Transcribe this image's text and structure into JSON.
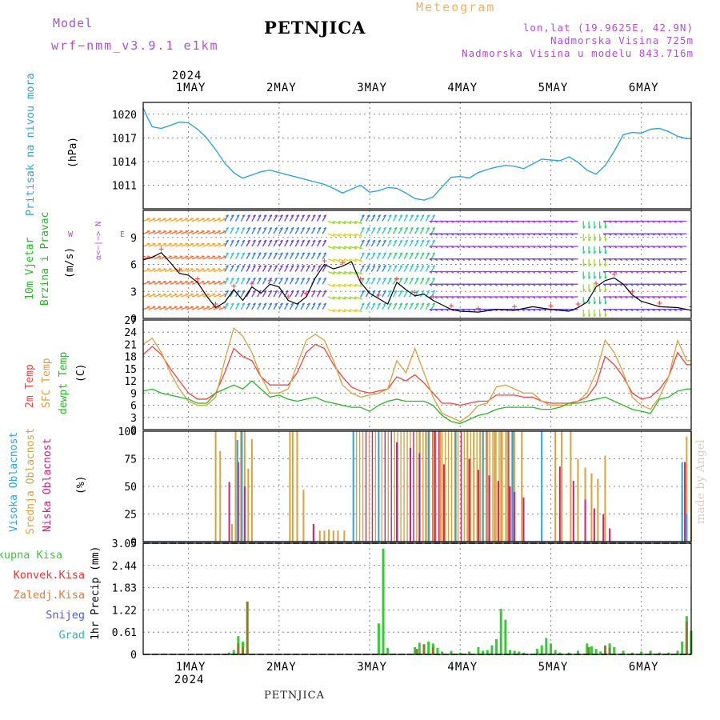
{
  "header": {
    "model_label": "Model",
    "model_run": "wrf−nmm_v3.9.1  e1km",
    "station": "PETNJICA",
    "product": "Meteogram",
    "lonlat": "lon,lat (19.9625E, 42.9N)",
    "altitude": "Nadmorska Visina 725m",
    "model_altitude": "Nadmorska Visina u modelu 843.716m",
    "bottom_station": "PETNJICA",
    "made_by": "made by Angel",
    "year": "2024"
  },
  "colors": {
    "purple": "#b04fd6",
    "pressure": "#2aa6e0",
    "temp2m": "#ee4444",
    "sfc": "#d9a23a",
    "dew": "#22bb22",
    "cloud_high": "#2aa6e0",
    "cloud_mid": "#d9a23a",
    "cloud_low": "#cc2277",
    "precip_total": "#33cc33",
    "precip_conv": "#ee3333",
    "precip_frozen": "#ee7733",
    "precip_snow": "#5555dd",
    "precip_grad": "#22bbbb"
  },
  "chart_data": [
    {
      "type": "line",
      "panel": "pressure",
      "ylabel_line1": "Pritisak na nivou mora",
      "unit": "(hPa)",
      "yticks": [
        "1020",
        "1017",
        "1014",
        "1011"
      ],
      "ylim": [
        1008,
        1021.5
      ],
      "xlim": [
        0.5,
        6.55
      ],
      "day_ticks": [
        "1MAY",
        "2MAY",
        "3MAY",
        "4MAY",
        "5MAY",
        "6MAY"
      ],
      "grid": true,
      "series": [
        {
          "x": [
            0.5,
            0.55,
            0.6,
            0.7,
            0.8,
            0.9,
            1.0,
            1.05,
            1.1,
            1.2,
            1.3,
            1.4,
            1.5,
            1.55,
            1.6,
            1.7,
            1.8,
            1.9,
            2.0,
            2.1,
            2.2,
            2.3,
            2.4,
            2.5,
            2.6,
            2.7,
            2.8,
            2.9,
            3.0,
            3.1,
            3.2,
            3.3,
            3.4,
            3.5,
            3.6,
            3.7,
            3.8,
            3.9,
            4.0,
            4.1,
            4.2,
            4.3,
            4.4,
            4.5,
            4.6,
            4.7,
            4.8,
            4.9,
            5.0,
            5.1,
            5.2,
            5.3,
            5.4,
            5.5,
            5.6,
            5.7,
            5.8,
            5.9,
            6.0,
            6.1,
            6.2,
            6.3,
            6.4,
            6.5,
            6.55
          ],
          "y": [
            1020.8,
            1019.5,
            1018.4,
            1018.2,
            1018.6,
            1019.0,
            1018.9,
            1018.5,
            1018.1,
            1017.0,
            1015.5,
            1013.8,
            1012.6,
            1012.2,
            1011.9,
            1012.3,
            1012.7,
            1012.9,
            1012.6,
            1012.3,
            1012.0,
            1011.7,
            1011.4,
            1011.1,
            1010.6,
            1010.0,
            1010.5,
            1011.0,
            1010.1,
            1010.3,
            1010.7,
            1010.6,
            1010.0,
            1009.3,
            1009.1,
            1009.5,
            1010.8,
            1012.0,
            1012.1,
            1011.9,
            1012.6,
            1013.0,
            1013.3,
            1013.5,
            1013.4,
            1013.1,
            1013.7,
            1014.3,
            1014.2,
            1014.1,
            1014.6,
            1013.9,
            1012.9,
            1012.4,
            1013.5,
            1015.3,
            1017.4,
            1017.7,
            1017.6,
            1018.1,
            1018.2,
            1017.8,
            1017.2,
            1016.9,
            1016.9
          ]
        }
      ]
    },
    {
      "type": "line",
      "panel": "wind",
      "ylabel_line1": "10m Vjetar",
      "ylabel_line2": "Brzina i Pravac",
      "unit": "(m/s)",
      "compass_ns": "α<−|−> N",
      "compass_w": "W",
      "compass_e": "E",
      "yticks": [
        "9",
        "6",
        "3",
        "0"
      ],
      "ylim": [
        0,
        12
      ],
      "series": [
        {
          "name": "speed",
          "x": [
            0.5,
            0.6,
            0.7,
            0.8,
            0.9,
            1.0,
            1.1,
            1.2,
            1.3,
            1.4,
            1.5,
            1.6,
            1.7,
            1.8,
            1.9,
            2.0,
            2.1,
            2.2,
            2.3,
            2.4,
            2.5,
            2.6,
            2.7,
            2.8,
            2.9,
            3.0,
            3.1,
            3.2,
            3.3,
            3.4,
            3.5,
            3.6,
            3.7,
            3.8,
            3.9,
            4.0,
            4.2,
            4.4,
            4.6,
            4.8,
            5.0,
            5.2,
            5.3,
            5.4,
            5.5,
            5.6,
            5.7,
            5.8,
            5.9,
            6.0,
            6.2,
            6.4,
            6.55
          ],
          "y": [
            6.5,
            6.8,
            7.3,
            6.2,
            5.0,
            4.8,
            4.0,
            2.5,
            1.2,
            1.8,
            3.2,
            2.0,
            3.5,
            2.8,
            3.8,
            3.5,
            2.0,
            1.6,
            2.4,
            4.5,
            6.0,
            5.5,
            5.8,
            6.3,
            4.0,
            2.8,
            2.2,
            1.6,
            4.0,
            3.2,
            2.5,
            2.7,
            2.0,
            1.5,
            1.0,
            0.8,
            0.7,
            1.0,
            0.9,
            1.3,
            1.0,
            0.8,
            1.2,
            1.8,
            3.5,
            4.2,
            4.5,
            3.8,
            2.6,
            1.9,
            1.3,
            1.2,
            0.9
          ]
        }
      ]
    },
    {
      "type": "line",
      "panel": "temperature",
      "labels": [
        "2m Temp",
        "SFC Temp",
        "dewpt Temp"
      ],
      "unit": "(C)",
      "yticks": [
        "27",
        "24",
        "21",
        "18",
        "15",
        "12",
        "9",
        "6",
        "3",
        "0"
      ],
      "ylim": [
        0,
        27
      ],
      "series": [
        {
          "name": "2m Temp",
          "x": [
            0.5,
            0.6,
            0.7,
            0.8,
            0.9,
            1.0,
            1.1,
            1.2,
            1.3,
            1.4,
            1.5,
            1.6,
            1.7,
            1.8,
            1.9,
            2.0,
            2.1,
            2.2,
            2.3,
            2.4,
            2.5,
            2.6,
            2.7,
            2.8,
            2.9,
            3.0,
            3.1,
            3.2,
            3.3,
            3.4,
            3.5,
            3.6,
            3.7,
            3.8,
            3.9,
            4.0,
            4.1,
            4.2,
            4.3,
            4.4,
            4.5,
            4.6,
            4.7,
            4.8,
            4.9,
            5.0,
            5.1,
            5.2,
            5.3,
            5.4,
            5.5,
            5.6,
            5.7,
            5.8,
            5.9,
            6.0,
            6.1,
            6.2,
            6.3,
            6.4,
            6.5,
            6.55
          ],
          "y": [
            18.5,
            20.5,
            18.5,
            15,
            12,
            9,
            7.5,
            7.5,
            9,
            14,
            20,
            18,
            17,
            13,
            11,
            11,
            11,
            14,
            19,
            21,
            20,
            16,
            13,
            10.5,
            9.5,
            9,
            9.5,
            10,
            13,
            12,
            13.5,
            11.5,
            9,
            6.5,
            6.5,
            6,
            6.5,
            7,
            7,
            8.5,
            8.5,
            8.5,
            8,
            8,
            7,
            6.5,
            6.5,
            6.5,
            7,
            8,
            11,
            18,
            16,
            13,
            9,
            7.5,
            8,
            10,
            13,
            19,
            16,
            16
          ]
        },
        {
          "name": "SFC Temp",
          "x": [
            0.5,
            0.6,
            0.7,
            0.8,
            0.9,
            1.0,
            1.1,
            1.2,
            1.3,
            1.4,
            1.5,
            1.6,
            1.7,
            1.8,
            1.9,
            2.0,
            2.1,
            2.2,
            2.3,
            2.4,
            2.5,
            2.6,
            2.7,
            2.8,
            2.9,
            3.0,
            3.1,
            3.2,
            3.3,
            3.4,
            3.5,
            3.6,
            3.7,
            3.8,
            3.9,
            4.0,
            4.1,
            4.2,
            4.3,
            4.4,
            4.5,
            4.6,
            4.7,
            4.8,
            4.9,
            5.0,
            5.1,
            5.2,
            5.3,
            5.4,
            5.5,
            5.6,
            5.7,
            5.8,
            5.9,
            6.0,
            6.1,
            6.2,
            6.3,
            6.4,
            6.5,
            6.55
          ],
          "y": [
            21,
            22.5,
            19,
            14,
            10,
            7,
            6,
            6,
            8,
            17,
            25,
            23,
            19,
            13,
            9,
            9,
            10,
            16,
            22,
            23.5,
            22,
            17,
            11,
            9,
            8,
            8.5,
            9,
            10,
            17,
            14,
            20,
            14,
            8,
            4,
            3,
            2,
            3.5,
            6,
            6.5,
            10.5,
            11,
            10,
            9,
            9,
            7,
            6,
            6,
            6,
            7,
            9,
            14,
            22,
            19,
            14,
            8,
            6,
            5,
            8,
            13,
            22,
            17,
            17
          ]
        },
        {
          "name": "dewpt Temp",
          "x": [
            0.5,
            0.6,
            0.7,
            0.8,
            0.9,
            1.0,
            1.1,
            1.2,
            1.3,
            1.4,
            1.5,
            1.6,
            1.7,
            1.8,
            1.9,
            2.0,
            2.1,
            2.2,
            2.3,
            2.4,
            2.5,
            2.6,
            2.7,
            2.8,
            2.9,
            3.0,
            3.1,
            3.2,
            3.3,
            3.4,
            3.5,
            3.6,
            3.7,
            3.8,
            3.9,
            4.0,
            4.1,
            4.2,
            4.3,
            4.4,
            4.5,
            4.6,
            4.7,
            4.8,
            4.9,
            5.0,
            5.1,
            5.2,
            5.3,
            5.4,
            5.5,
            5.6,
            5.7,
            5.8,
            5.9,
            6.0,
            6.1,
            6.2,
            6.3,
            6.4,
            6.5,
            6.55
          ],
          "y": [
            9.5,
            10,
            9,
            8.5,
            8,
            7.5,
            6.5,
            6.5,
            9,
            10,
            11,
            10,
            12,
            10,
            8,
            8.5,
            7.5,
            7,
            7.5,
            8,
            7,
            6.5,
            6,
            5.5,
            5.5,
            4.5,
            6,
            7,
            7.5,
            7,
            7,
            7,
            6,
            3.5,
            2,
            1.5,
            2.5,
            3.5,
            4,
            5,
            5.5,
            5.5,
            5.5,
            5.5,
            5,
            5,
            5.5,
            6.5,
            6.5,
            7,
            7.5,
            8,
            7,
            6,
            5,
            4.5,
            4,
            7.5,
            8,
            9.5,
            10,
            10
          ]
        }
      ]
    },
    {
      "type": "bar",
      "panel": "clouds",
      "labels": [
        "Visoka Oblacnost",
        "Srednja Oblacnost",
        "Niska Oblacnost"
      ],
      "unit": "(%)",
      "yticks": [
        "100",
        "75",
        "50",
        "25",
        "0"
      ],
      "ylim": [
        0,
        100
      ],
      "series": [
        {
          "name": "Srednja Oblacnost",
          "x": [
            1.3,
            1.35,
            1.48,
            1.52,
            1.58,
            1.62,
            1.66,
            1.7,
            2.12,
            2.15,
            2.2,
            2.27,
            2.38,
            2.45,
            2.5,
            2.55,
            2.6,
            2.65,
            2.72,
            3.55,
            3.62,
            3.7,
            3.78,
            4.08,
            4.15,
            4.22,
            4.3,
            4.38,
            4.45,
            4.52,
            4.6,
            4.68,
            5.05,
            5.12,
            5.22,
            5.3,
            5.38,
            5.45,
            5.52,
            5.6,
            6.45,
            6.5,
            6.55
          ],
          "y": [
            100,
            82,
            16,
            100,
            100,
            100,
            66,
            93,
            100,
            100,
            100,
            47,
            13,
            10,
            10,
            11,
            10,
            10,
            10,
            100,
            100,
            100,
            100,
            100,
            100,
            100,
            100,
            100,
            100,
            100,
            100,
            100,
            100,
            100,
            100,
            75,
            67,
            62,
            57,
            78,
            45,
            95,
            100
          ]
        },
        {
          "name": "Niska Oblacnost",
          "x": [
            1.45,
            1.55,
            1.62,
            2.38,
            3.3,
            3.45,
            3.55,
            3.72,
            3.82,
            4.1,
            4.2,
            4.32,
            4.42,
            4.55,
            4.6,
            4.7,
            5.1,
            5.25,
            5.38,
            5.48,
            5.58,
            5.65,
            6.48
          ],
          "y": [
            54,
            72,
            50,
            16,
            90,
            85,
            80,
            100,
            70,
            75,
            65,
            60,
            55,
            50,
            45,
            40,
            68,
            55,
            38,
            30,
            25,
            12,
            72
          ]
        },
        {
          "name": "Visoka Oblacnost",
          "x": [
            1.54,
            1.59,
            2.82,
            3.1,
            3.65,
            3.95,
            4.25,
            4.58,
            4.9,
            6.45,
            6.5
          ],
          "y": [
            92,
            100,
            100,
            100,
            100,
            100,
            100,
            100,
            100,
            72,
            25
          ]
        }
      ]
    },
    {
      "type": "bar",
      "panel": "precipitation",
      "labels": [
        "Ukupna Kisa",
        "Konvek.Kisa",
        "Zaledj.Kisa",
        "Snijeg",
        "Grad"
      ],
      "ylabel": "1hr Precip (mm)",
      "yticks": [
        "3.05",
        "2.44",
        "1.83",
        "1.22",
        "0.61",
        "0"
      ],
      "ylim": [
        0,
        3.05
      ],
      "series": [
        {
          "name": "Ukupna Kisa",
          "x": [
            1.45,
            1.5,
            1.55,
            1.6,
            1.65,
            3.1,
            3.15,
            3.2,
            3.5,
            3.55,
            3.6,
            3.65,
            3.7,
            3.75,
            3.8,
            3.9,
            4.0,
            4.1,
            4.2,
            4.25,
            4.3,
            4.35,
            4.4,
            4.45,
            4.5,
            4.55,
            4.6,
            4.65,
            4.7,
            4.85,
            4.9,
            4.95,
            5.0,
            5.05,
            5.1,
            5.2,
            5.3,
            5.4,
            5.45,
            5.5,
            5.55,
            5.6,
            5.65,
            5.7,
            5.8,
            5.9,
            6.0,
            6.1,
            6.2,
            6.3,
            6.4,
            6.45,
            6.5,
            6.55
          ],
          "y": [
            0.05,
            0.12,
            0.5,
            0.35,
            0.1,
            0.85,
            2.9,
            0.18,
            0.2,
            0.32,
            0.25,
            0.35,
            0.3,
            0.18,
            0.08,
            0.1,
            0.05,
            0.08,
            0.2,
            0.1,
            0.12,
            0.25,
            0.42,
            1.25,
            0.95,
            0.12,
            0.1,
            0.08,
            0.05,
            0.15,
            0.25,
            0.45,
            0.3,
            0.12,
            0.05,
            0.05,
            0.1,
            0.3,
            0.22,
            0.15,
            0.08,
            0.25,
            0.3,
            0.2,
            0.1,
            0.05,
            0.08,
            0.1,
            0.05,
            0.05,
            0.1,
            0.35,
            1.05,
            0.65
          ]
        },
        {
          "name": "Konvek.Kisa",
          "x": [
            1.55,
            1.6,
            1.65,
            3.52,
            3.6,
            3.7,
            5.42,
            5.6,
            5.65,
            6.5
          ],
          "y": [
            0.3,
            0.2,
            1.45,
            0.15,
            0.28,
            0.2,
            0.2,
            0.22,
            0.18,
            0.9
          ]
        }
      ]
    }
  ]
}
